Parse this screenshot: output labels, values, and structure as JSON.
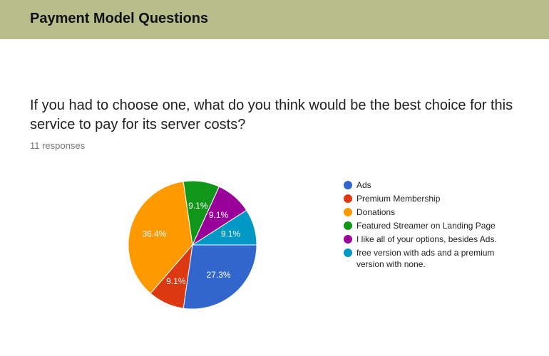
{
  "header": {
    "title": "Payment Model Questions"
  },
  "question": {
    "text": "If you had to choose one, what do you think would be the best choice for this service to pay for its server costs?",
    "responses": "11 responses"
  },
  "chart_data": {
    "type": "pie",
    "legend_position": "right",
    "slices": [
      {
        "label": "Ads",
        "value": 27.3,
        "display": "27.3%",
        "color": "#3366cc"
      },
      {
        "label": "Premium Membership",
        "value": 9.1,
        "display": "9.1%",
        "color": "#dc3912"
      },
      {
        "label": "Donations",
        "value": 36.4,
        "display": "36.4%",
        "color": "#ff9900"
      },
      {
        "label": "Featured Streamer on Landing Page",
        "value": 9.1,
        "display": "9.1%",
        "color": "#109618"
      },
      {
        "label": "I like all of your options, besides Ads.",
        "value": 9.1,
        "display": "9.1%",
        "color": "#990099"
      },
      {
        "label": "free version with ads and a premium version with none.",
        "value": 9.1,
        "display": "9.1%",
        "color": "#0099c6"
      }
    ]
  }
}
